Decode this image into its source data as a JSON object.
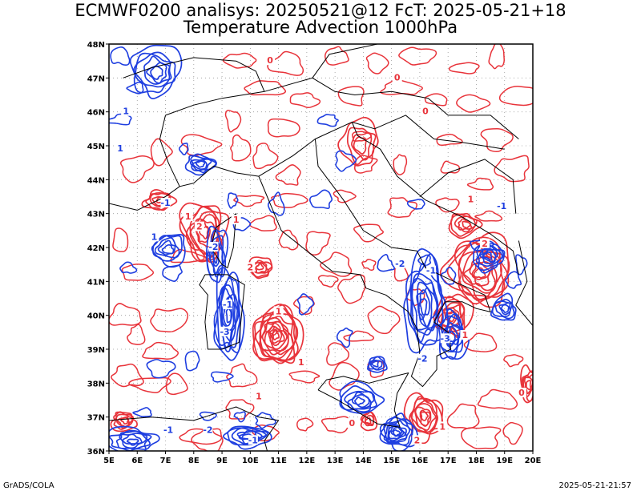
{
  "header": {
    "title_line1": "ECMWF0200 analisys: 20250521@12 FcT: 2025-05-21+18",
    "title_line2": "Temperature Advection 1000hPa"
  },
  "axes": {
    "lon_labels": [
      "5E",
      "6E",
      "7E",
      "8E",
      "9E",
      "10E",
      "11E",
      "12E",
      "13E",
      "14E",
      "15E",
      "16E",
      "17E",
      "18E",
      "19E",
      "20E"
    ],
    "lat_labels": [
      "48N",
      "47N",
      "46N",
      "45N",
      "44N",
      "43N",
      "42N",
      "41N",
      "40N",
      "39N",
      "38N",
      "37N",
      "36N"
    ],
    "lon_range": [
      5,
      20
    ],
    "lat_range": [
      36,
      48
    ],
    "grid": true
  },
  "colors": {
    "warm_advection": "#e8333a",
    "cold_advection": "#1f3fe0",
    "coast": "#000000",
    "grid": "#9a9a9a"
  },
  "contour_labels": [
    {
      "text": "1",
      "lon": 5.6,
      "lat": 46.0,
      "sign": "neg"
    },
    {
      "text": "1",
      "lon": 5.4,
      "lat": 44.9,
      "sign": "neg"
    },
    {
      "text": "-1",
      "lon": 7.0,
      "lat": 43.3,
      "sign": "neg"
    },
    {
      "text": "1",
      "lon": 6.6,
      "lat": 42.3,
      "sign": "neg"
    },
    {
      "text": "-2",
      "lon": 8.7,
      "lat": 42.0,
      "sign": "neg"
    },
    {
      "text": "-1",
      "lon": 9.2,
      "lat": 40.3,
      "sign": "neg"
    },
    {
      "text": "-3",
      "lon": 9.1,
      "lat": 39.5,
      "sign": "neg"
    },
    {
      "text": "-1",
      "lon": 7.1,
      "lat": 36.6,
      "sign": "neg"
    },
    {
      "text": "-2",
      "lon": 8.5,
      "lat": 36.6,
      "sign": "neg"
    },
    {
      "text": "-1",
      "lon": 10.1,
      "lat": 36.3,
      "sign": "neg"
    },
    {
      "text": "-2",
      "lon": 15.3,
      "lat": 41.5,
      "sign": "neg"
    },
    {
      "text": "-1",
      "lon": 16.4,
      "lat": 41.3,
      "sign": "neg"
    },
    {
      "text": "-3",
      "lon": 16.9,
      "lat": 39.3,
      "sign": "neg"
    },
    {
      "text": "-2",
      "lon": 16.1,
      "lat": 38.7,
      "sign": "neg"
    },
    {
      "text": "-1",
      "lon": 18.9,
      "lat": 43.2,
      "sign": "neg"
    },
    {
      "text": "0",
      "lon": 10.7,
      "lat": 47.5,
      "sign": "pos"
    },
    {
      "text": "0",
      "lon": 15.2,
      "lat": 47.0,
      "sign": "pos"
    },
    {
      "text": "0",
      "lon": 16.2,
      "lat": 46.0,
      "sign": "pos"
    },
    {
      "text": "1",
      "lon": 7.8,
      "lat": 42.9,
      "sign": "pos"
    },
    {
      "text": "2",
      "lon": 8.2,
      "lat": 42.6,
      "sign": "pos"
    },
    {
      "text": "1",
      "lon": 9.5,
      "lat": 42.8,
      "sign": "pos"
    },
    {
      "text": "2",
      "lon": 10.0,
      "lat": 41.4,
      "sign": "pos"
    },
    {
      "text": "1",
      "lon": 11.0,
      "lat": 40.1,
      "sign": "pos"
    },
    {
      "text": "1",
      "lon": 11.8,
      "lat": 38.6,
      "sign": "pos"
    },
    {
      "text": "1",
      "lon": 10.3,
      "lat": 37.6,
      "sign": "pos"
    },
    {
      "text": "1",
      "lon": 17.8,
      "lat": 43.4,
      "sign": "pos"
    },
    {
      "text": "2",
      "lon": 18.3,
      "lat": 42.1,
      "sign": "pos"
    },
    {
      "text": "1",
      "lon": 17.6,
      "lat": 39.4,
      "sign": "pos"
    },
    {
      "text": "1",
      "lon": 16.8,
      "lat": 36.7,
      "sign": "pos"
    },
    {
      "text": "2",
      "lon": 15.9,
      "lat": 36.3,
      "sign": "pos"
    },
    {
      "text": "0",
      "lon": 13.6,
      "lat": 36.8,
      "sign": "pos"
    },
    {
      "text": "0",
      "lon": 19.6,
      "lat": 37.7,
      "sign": "pos"
    }
  ],
  "footer": {
    "left": "GrADS/COLA",
    "right": "2025-05-21-21:57"
  }
}
